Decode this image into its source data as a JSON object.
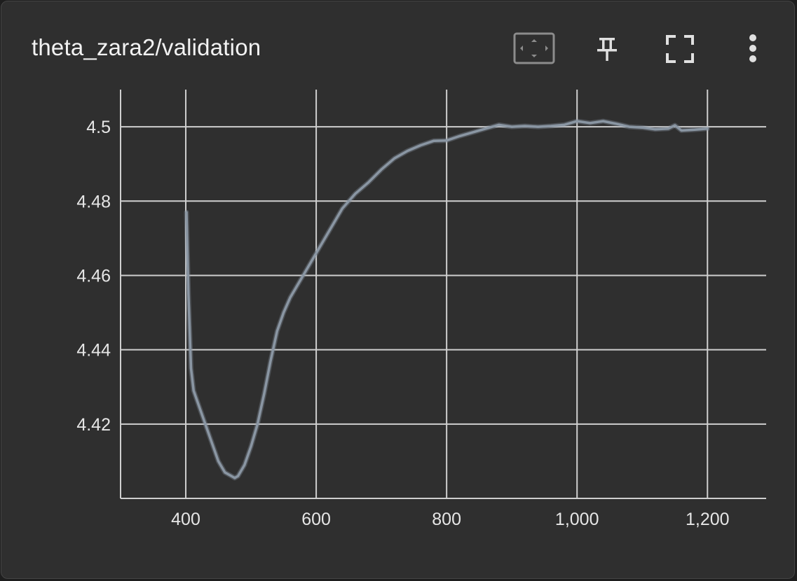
{
  "card": {
    "title": "theta_zara2/validation"
  },
  "toolbar": {
    "buttons": [
      {
        "name": "fit-to-data-icon"
      },
      {
        "name": "pin-icon"
      },
      {
        "name": "fullscreen-icon"
      },
      {
        "name": "more-vert-icon"
      }
    ]
  },
  "colors": {
    "background": "#2f2f2f",
    "grid": "#cfcfcf",
    "line": "#8a96a3",
    "text": "#e6e6e6"
  },
  "chart_data": {
    "type": "line",
    "title": "",
    "xlabel": "",
    "ylabel": "",
    "xlim": [
      300,
      1290
    ],
    "ylim": [
      4.4,
      4.51
    ],
    "x_ticks": [
      400,
      600,
      800,
      1000,
      1200
    ],
    "x_tick_labels": [
      "400",
      "600",
      "800",
      "1,000",
      "1,200"
    ],
    "y_ticks": [
      4.42,
      4.44,
      4.46,
      4.48,
      4.5
    ],
    "y_tick_labels": [
      "4.42",
      "4.44",
      "4.46",
      "4.48",
      "4.5"
    ],
    "grid": true,
    "series": [
      {
        "x": [
          401,
          404,
          408,
          412,
          420,
          430,
          440,
          450,
          460,
          470,
          475,
          480,
          490,
          500,
          510,
          520,
          530,
          540,
          550,
          560,
          570,
          580,
          590,
          600,
          620,
          640,
          660,
          680,
          700,
          720,
          740,
          760,
          780,
          800,
          820,
          840,
          860,
          880,
          900,
          920,
          940,
          960,
          980,
          1000,
          1020,
          1040,
          1060,
          1080,
          1100,
          1120,
          1140,
          1150,
          1160,
          1180,
          1200
        ],
        "y": [
          4.477,
          4.455,
          4.435,
          4.429,
          4.425,
          4.42,
          4.415,
          4.41,
          4.407,
          4.406,
          4.4055,
          4.406,
          4.409,
          4.414,
          4.42,
          4.428,
          4.437,
          4.445,
          4.45,
          4.454,
          4.457,
          4.46,
          4.463,
          4.466,
          4.472,
          4.478,
          4.482,
          4.485,
          4.4885,
          4.4915,
          4.4935,
          4.495,
          4.4962,
          4.4963,
          4.4975,
          4.4985,
          4.4995,
          4.5005,
          4.5,
          4.5002,
          4.5,
          4.5002,
          4.5005,
          4.5015,
          4.501,
          4.5015,
          4.5008,
          4.5,
          4.4998,
          4.4993,
          4.4995,
          4.5004,
          4.499,
          4.4992,
          4.4995
        ]
      }
    ]
  }
}
